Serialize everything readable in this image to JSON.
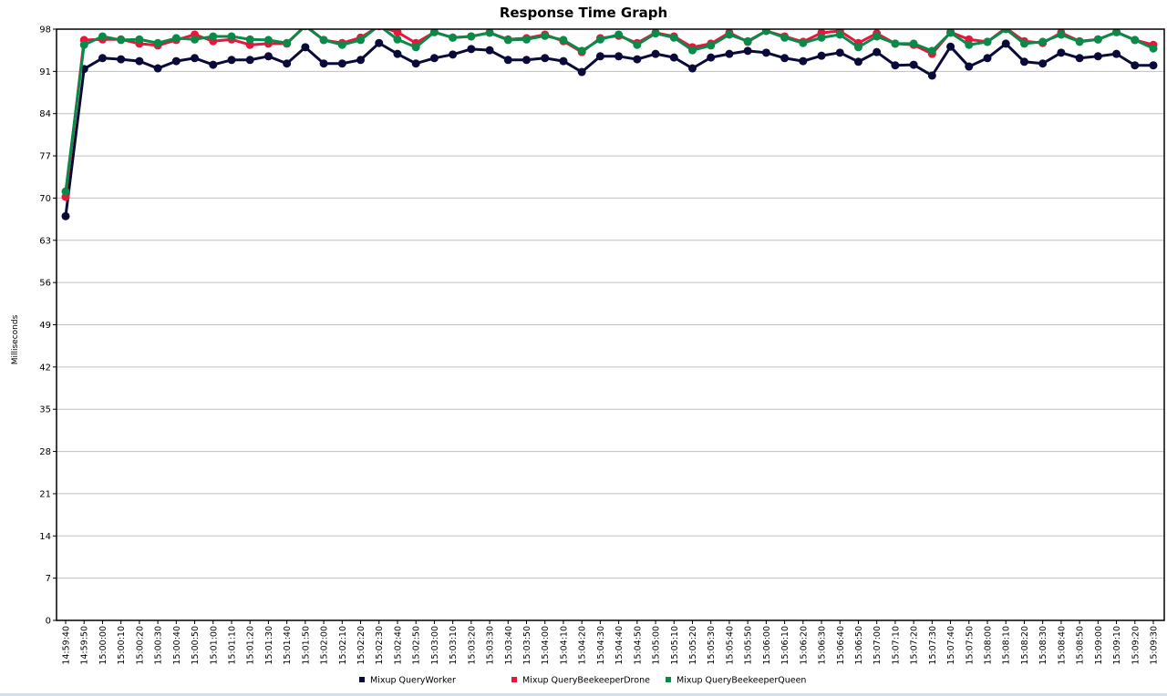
{
  "chart_data": {
    "type": "line",
    "title": "Response Time Graph",
    "xlabel": "",
    "ylabel": "Milliseconds",
    "ylim": [
      0,
      98
    ],
    "yticks": [
      0,
      7,
      14,
      21,
      28,
      35,
      42,
      49,
      56,
      63,
      70,
      77,
      84,
      91,
      98
    ],
    "grid": true,
    "legend": "bottom",
    "categories": [
      "14:59:40",
      "14:59:50",
      "15:00:00",
      "15:00:10",
      "15:00:20",
      "15:00:30",
      "15:00:40",
      "15:00:50",
      "15:01:00",
      "15:01:10",
      "15:01:20",
      "15:01:30",
      "15:01:40",
      "15:01:50",
      "15:02:00",
      "15:02:10",
      "15:02:20",
      "15:02:30",
      "15:02:40",
      "15:02:50",
      "15:03:00",
      "15:03:10",
      "15:03:20",
      "15:03:30",
      "15:03:40",
      "15:03:50",
      "15:04:00",
      "15:04:10",
      "15:04:20",
      "15:04:30",
      "15:04:40",
      "15:04:50",
      "15:05:00",
      "15:05:10",
      "15:05:20",
      "15:05:30",
      "15:05:40",
      "15:05:50",
      "15:06:00",
      "15:06:10",
      "15:06:20",
      "15:06:30",
      "15:06:40",
      "15:06:50",
      "15:07:00",
      "15:07:10",
      "15:07:20",
      "15:07:30",
      "15:07:40",
      "15:07:50",
      "15:08:00",
      "15:08:10",
      "15:08:20",
      "15:08:30",
      "15:08:40",
      "15:08:50",
      "15:09:00",
      "15:09:10",
      "15:09:20",
      "15:09:30"
    ],
    "series": [
      {
        "name": "Mixup QueryWorker",
        "color": "#0a0a3a",
        "values": [
          67.0,
          91.4,
          93.2,
          93.0,
          92.7,
          91.5,
          92.7,
          93.2,
          92.1,
          92.9,
          92.9,
          93.5,
          92.3,
          95.0,
          92.3,
          92.3,
          92.9,
          95.7,
          93.9,
          92.3,
          93.2,
          93.8,
          94.7,
          94.5,
          92.9,
          92.9,
          93.2,
          92.7,
          90.9,
          93.5,
          93.5,
          93.0,
          93.9,
          93.3,
          91.5,
          93.3,
          93.9,
          94.4,
          94.1,
          93.2,
          92.7,
          93.6,
          94.1,
          92.6,
          94.2,
          92.0,
          92.1,
          90.3,
          95.1,
          91.8,
          93.2,
          95.6,
          92.6,
          92.3,
          94.1,
          93.2,
          93.5,
          93.9,
          92.0,
          92.0
        ]
      },
      {
        "name": "Mixup QueryBeekeeperDrone",
        "color": "#e8163c",
        "values": [
          70.2,
          96.2,
          96.3,
          96.3,
          95.6,
          95.3,
          96.2,
          97.1,
          96.0,
          96.3,
          95.4,
          95.6,
          95.6,
          98.6,
          96.2,
          95.7,
          96.6,
          98.5,
          97.5,
          95.7,
          97.5,
          96.6,
          96.8,
          97.4,
          96.3,
          96.5,
          97.1,
          96.0,
          94.2,
          96.5,
          96.9,
          95.7,
          97.4,
          96.8,
          95.0,
          95.6,
          97.4,
          95.9,
          97.7,
          96.8,
          95.9,
          97.4,
          97.7,
          95.7,
          97.3,
          95.6,
          95.4,
          93.9,
          97.5,
          96.3,
          95.9,
          98.2,
          96.0,
          95.7,
          97.4,
          96.0,
          96.3,
          97.5,
          96.2,
          95.4
        ]
      },
      {
        "name": "Mixup QueryBeekeeperQueen",
        "color": "#0a8a48",
        "values": [
          71.1,
          95.4,
          96.8,
          96.2,
          96.3,
          95.7,
          96.5,
          96.3,
          96.8,
          96.8,
          96.3,
          96.2,
          95.7,
          98.5,
          96.2,
          95.4,
          96.2,
          98.6,
          96.3,
          95.0,
          97.5,
          96.6,
          96.8,
          97.4,
          96.2,
          96.3,
          96.9,
          96.2,
          94.4,
          96.3,
          97.1,
          95.4,
          97.3,
          96.6,
          94.5,
          95.3,
          97.1,
          96.0,
          97.7,
          96.6,
          95.7,
          96.6,
          97.1,
          95.0,
          96.8,
          95.6,
          95.6,
          94.4,
          97.4,
          95.4,
          95.9,
          98.0,
          95.6,
          95.9,
          97.1,
          95.9,
          96.3,
          97.5,
          96.2,
          94.8
        ]
      }
    ]
  }
}
